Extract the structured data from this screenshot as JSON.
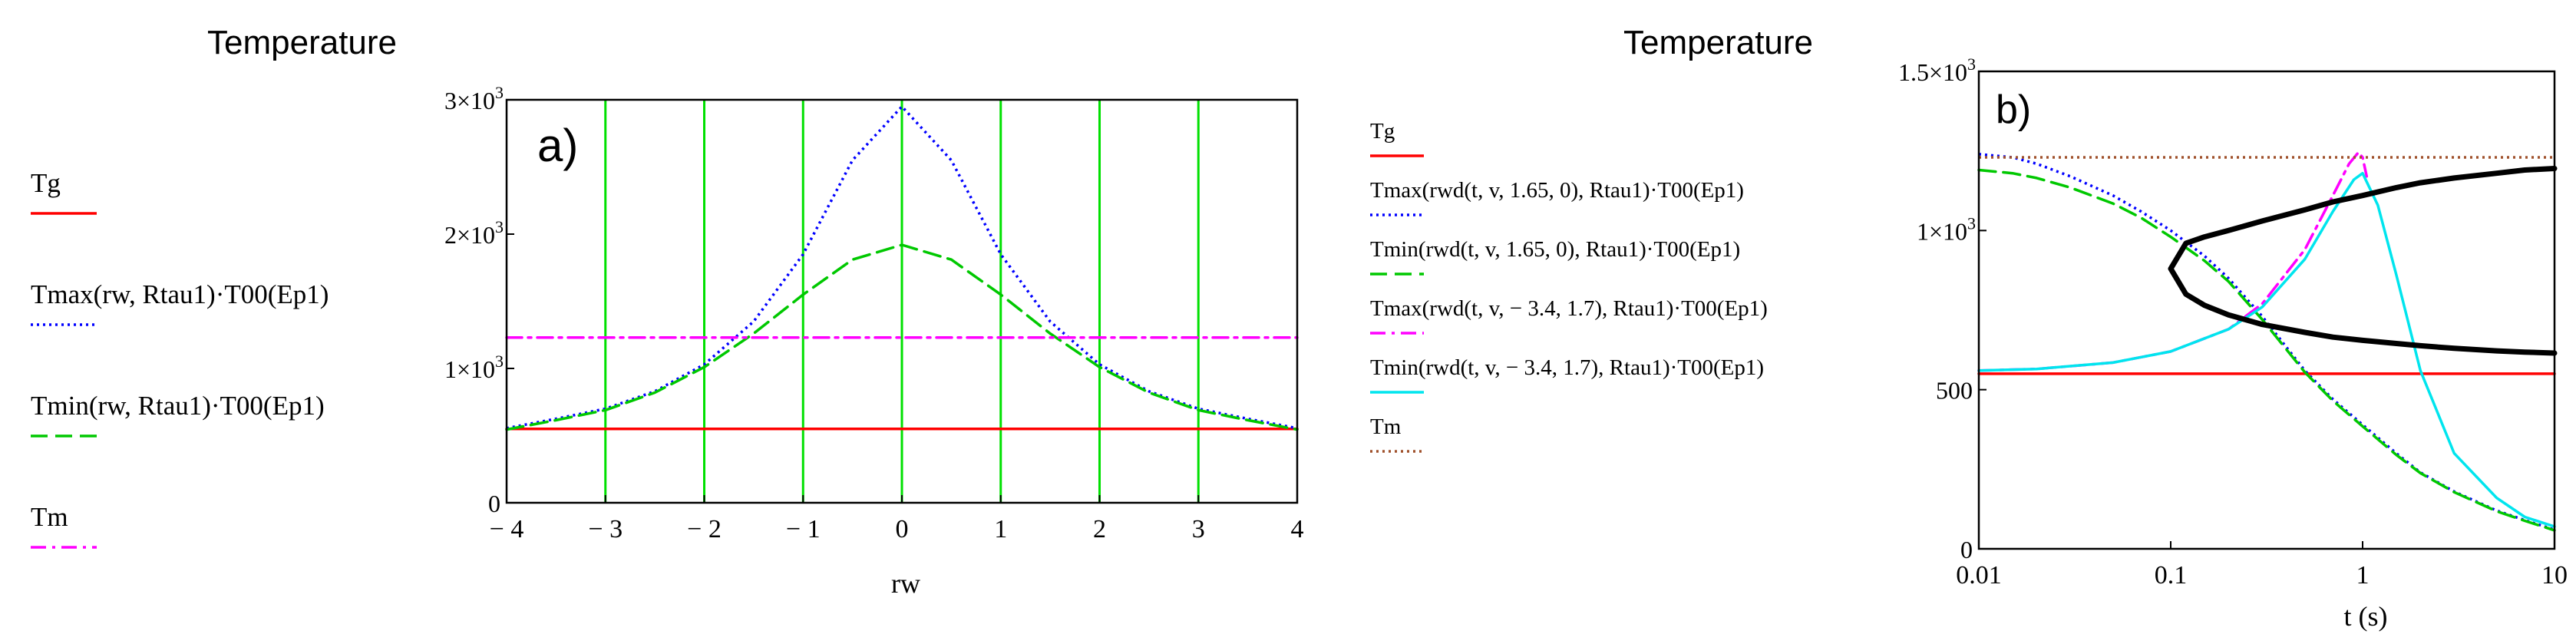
{
  "chart_data": [
    {
      "type": "line",
      "panel_label": "a)",
      "heading": "Temperature",
      "xlabel": "rw",
      "xlim": [
        -4,
        4
      ],
      "ylim": [
        0,
        3000
      ],
      "xticks": [
        "− 4",
        "− 3",
        "− 2",
        "− 1",
        "0",
        "1",
        "2",
        "3",
        "4"
      ],
      "yticks": [
        {
          "m": "0",
          "e": ""
        },
        {
          "m": "1×10",
          "e": "3"
        },
        {
          "m": "2×10",
          "e": "3"
        },
        {
          "m": "3×10",
          "e": "3"
        }
      ],
      "vertical_markers": [
        -3,
        -2,
        -1,
        0,
        1,
        2,
        3
      ],
      "series": [
        {
          "name": "Tg",
          "color": "#ff0000",
          "dash": "solid",
          "x": [
            -4,
            4
          ],
          "y": [
            550,
            550
          ]
        },
        {
          "name": "Tmax(rw, Rtau1)·T00(Ep1)",
          "color": "#0000ff",
          "dash": "dotted",
          "x": [
            -4,
            -3.5,
            -3,
            -2.5,
            -2,
            -1.5,
            -1,
            -0.5,
            0,
            0.5,
            1,
            1.5,
            2,
            2.5,
            3,
            3.5,
            4
          ],
          "y": [
            555,
            625,
            700,
            830,
            1030,
            1350,
            1850,
            2550,
            2950,
            2550,
            1850,
            1350,
            1030,
            830,
            700,
            625,
            555
          ]
        },
        {
          "name": "Tmin(rw, Rtau1)·T00(Ep1)",
          "color": "#00c800",
          "dash": "dashed",
          "x": [
            -4,
            -3.5,
            -3,
            -2.5,
            -2,
            -1.5,
            -1,
            -0.5,
            0,
            0.5,
            1,
            1.5,
            2,
            2.5,
            3,
            3.5,
            4
          ],
          "y": [
            545,
            615,
            690,
            820,
            1010,
            1260,
            1550,
            1810,
            1920,
            1810,
            1550,
            1260,
            1010,
            820,
            690,
            615,
            545
          ]
        },
        {
          "name": "Tm",
          "color": "#ff00ff",
          "dash": "dashdot",
          "x": [
            -4,
            4
          ],
          "y": [
            1230,
            1230
          ]
        }
      ]
    },
    {
      "type": "line",
      "panel_label": "b)",
      "heading": "Temperature",
      "xlabel": "t (s)",
      "xscale": "log",
      "xlim": [
        0.01,
        10
      ],
      "ylim": [
        0,
        1500
      ],
      "xticks": [
        "0.01",
        "0.1",
        "1",
        "10"
      ],
      "yticks": [
        {
          "m": "0",
          "e": ""
        },
        {
          "m": "500",
          "e": ""
        },
        {
          "m": "1×10",
          "e": "3"
        },
        {
          "m": "1.5×10",
          "e": "3"
        }
      ],
      "series": [
        {
          "name": "Tg",
          "color": "#ff0000",
          "dash": "solid",
          "x": [
            0.01,
            10
          ],
          "y": [
            550,
            550
          ]
        },
        {
          "name": "Tmax(rwd(t, v, 1.65, 0), Rtau1)·T00(Ep1)",
          "color": "#0000ff",
          "dash": "dotted",
          "x": [
            0.01,
            0.015,
            0.02,
            0.03,
            0.05,
            0.07,
            0.1,
            0.15,
            0.2,
            0.3,
            0.5,
            0.7,
            1,
            1.5,
            2,
            3,
            5,
            7,
            10
          ],
          "y": [
            1240,
            1230,
            1210,
            1170,
            1110,
            1060,
            1000,
            920,
            850,
            730,
            560,
            470,
            390,
            300,
            240,
            180,
            120,
            90,
            60
          ]
        },
        {
          "name": "Tmin(rwd(t, v, 1.65, 0), Rtau1)·T00(Ep1)",
          "color": "#00c800",
          "dash": "dashed",
          "x": [
            0.01,
            0.015,
            0.02,
            0.03,
            0.05,
            0.07,
            0.1,
            0.15,
            0.2,
            0.3,
            0.5,
            0.7,
            1,
            1.5,
            2,
            3,
            5,
            7,
            10
          ],
          "y": [
            1190,
            1180,
            1165,
            1135,
            1085,
            1040,
            980,
            905,
            840,
            720,
            555,
            465,
            385,
            295,
            238,
            178,
            118,
            88,
            58
          ]
        },
        {
          "name": "Tmax(rwd(t, v, − 3.4, 1.7), Rtau1)·T00(Ep1)",
          "color": "#ff00ff",
          "dash": "dashdot",
          "x": [
            0.01,
            0.02,
            0.05,
            0.1,
            0.2,
            0.3,
            0.5,
            0.7,
            0.85,
            0.95,
            1.0,
            1.05
          ],
          "y": [
            560,
            565,
            585,
            620,
            690,
            770,
            940,
            1110,
            1210,
            1245,
            1230,
            1170
          ]
        },
        {
          "name": "Tmin(rwd(t, v, − 3.4, 1.7), Rtau1)·T00(Ep1)",
          "color": "#00e5ee",
          "dash": "solid",
          "x": [
            0.01,
            0.02,
            0.05,
            0.1,
            0.2,
            0.3,
            0.5,
            0.7,
            0.9,
            1.0,
            1.2,
            1.5,
            2,
            3,
            5,
            7,
            10
          ],
          "y": [
            560,
            565,
            585,
            620,
            690,
            760,
            910,
            1060,
            1160,
            1180,
            1080,
            860,
            560,
            300,
            160,
            100,
            70
          ]
        },
        {
          "name": "Tm",
          "color": "#a0522d",
          "dash": "dotted",
          "x": [
            0.01,
            10
          ],
          "y": [
            1230,
            1230
          ]
        },
        {
          "name": "",
          "color": "#000000",
          "dash": "solid",
          "width": 7,
          "x": [
            10,
            7,
            5,
            3,
            2,
            1.5,
            1,
            0.7,
            0.5,
            0.3,
            0.2,
            0.15,
            0.12,
            0.1,
            0.12,
            0.15,
            0.2,
            0.3,
            0.5,
            0.7,
            1,
            1.5,
            2,
            3,
            5,
            7,
            10
          ],
          "y": [
            1195,
            1190,
            1180,
            1165,
            1150,
            1135,
            1110,
            1090,
            1065,
            1030,
            1000,
            980,
            960,
            880,
            800,
            765,
            735,
            705,
            680,
            665,
            655,
            645,
            638,
            630,
            622,
            618,
            615
          ]
        }
      ]
    }
  ]
}
